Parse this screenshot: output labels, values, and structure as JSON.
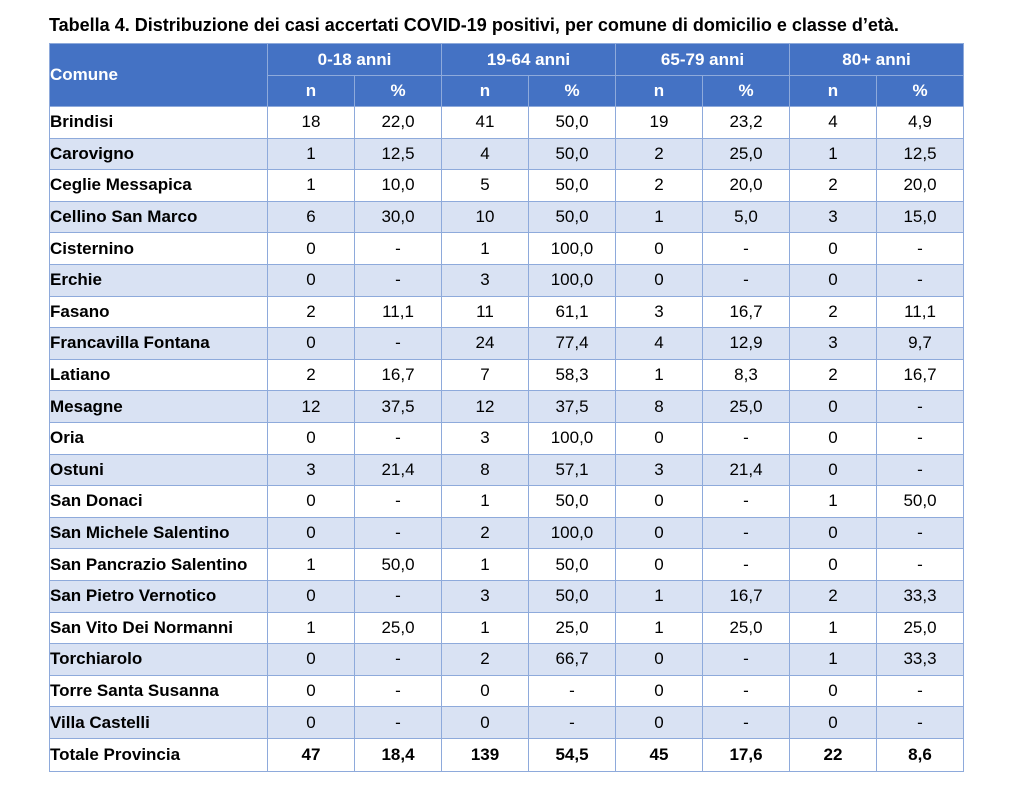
{
  "caption": "Tabella 4. Distribuzione dei casi accertati COVID-19 positivi, per comune di domicilio e classe d’età.",
  "table": {
    "comune_header": "Comune",
    "groups": [
      "0-18 anni",
      "19-64 anni",
      "65-79 anni",
      "80+ anni"
    ],
    "sub_headers": [
      "n",
      "%",
      "n",
      "%",
      "n",
      "%",
      "n",
      "%"
    ],
    "rows": [
      {
        "name": "Brindisi",
        "cells": [
          "18",
          "22,0",
          "41",
          "50,0",
          "19",
          "23,2",
          "4",
          "4,9"
        ]
      },
      {
        "name": "Carovigno",
        "cells": [
          "1",
          "12,5",
          "4",
          "50,0",
          "2",
          "25,0",
          "1",
          "12,5"
        ]
      },
      {
        "name": "Ceglie Messapica",
        "cells": [
          "1",
          "10,0",
          "5",
          "50,0",
          "2",
          "20,0",
          "2",
          "20,0"
        ]
      },
      {
        "name": "Cellino San Marco",
        "cells": [
          "6",
          "30,0",
          "10",
          "50,0",
          "1",
          "5,0",
          "3",
          "15,0"
        ]
      },
      {
        "name": "Cisternino",
        "cells": [
          "0",
          "-",
          "1",
          "100,0",
          "0",
          "-",
          "0",
          "-"
        ]
      },
      {
        "name": "Erchie",
        "cells": [
          "0",
          "-",
          "3",
          "100,0",
          "0",
          "-",
          "0",
          "-"
        ]
      },
      {
        "name": "Fasano",
        "cells": [
          "2",
          "11,1",
          "11",
          "61,1",
          "3",
          "16,7",
          "2",
          "11,1"
        ]
      },
      {
        "name": "Francavilla Fontana",
        "cells": [
          "0",
          "-",
          "24",
          "77,4",
          "4",
          "12,9",
          "3",
          "9,7"
        ]
      },
      {
        "name": "Latiano",
        "cells": [
          "2",
          "16,7",
          "7",
          "58,3",
          "1",
          "8,3",
          "2",
          "16,7"
        ]
      },
      {
        "name": "Mesagne",
        "cells": [
          "12",
          "37,5",
          "12",
          "37,5",
          "8",
          "25,0",
          "0",
          "-"
        ]
      },
      {
        "name": "Oria",
        "cells": [
          "0",
          "-",
          "3",
          "100,0",
          "0",
          "-",
          "0",
          "-"
        ]
      },
      {
        "name": "Ostuni",
        "cells": [
          "3",
          "21,4",
          "8",
          "57,1",
          "3",
          "21,4",
          "0",
          "-"
        ]
      },
      {
        "name": "San Donaci",
        "cells": [
          "0",
          "-",
          "1",
          "50,0",
          "0",
          "-",
          "1",
          "50,0"
        ]
      },
      {
        "name": "San Michele Salentino",
        "cells": [
          "0",
          "-",
          "2",
          "100,0",
          "0",
          "-",
          "0",
          "-"
        ]
      },
      {
        "name": "San Pancrazio Salentino",
        "cells": [
          "1",
          "50,0",
          "1",
          "50,0",
          "0",
          "-",
          "0",
          "-"
        ]
      },
      {
        "name": "San Pietro Vernotico",
        "cells": [
          "0",
          "-",
          "3",
          "50,0",
          "1",
          "16,7",
          "2",
          "33,3"
        ]
      },
      {
        "name": "San Vito Dei Normanni",
        "cells": [
          "1",
          "25,0",
          "1",
          "25,0",
          "1",
          "25,0",
          "1",
          "25,0"
        ]
      },
      {
        "name": "Torchiarolo",
        "cells": [
          "0",
          "-",
          "2",
          "66,7",
          "0",
          "-",
          "1",
          "33,3"
        ]
      },
      {
        "name": "Torre Santa Susanna",
        "cells": [
          "0",
          "-",
          "0",
          "-",
          "0",
          "-",
          "0",
          "-"
        ]
      },
      {
        "name": "Villa Castelli",
        "cells": [
          "0",
          "-",
          "0",
          "-",
          "0",
          "-",
          "0",
          "-"
        ]
      }
    ],
    "total": {
      "name": "Totale Provincia",
      "cells": [
        "47",
        "18,4",
        "139",
        "54,5",
        "45",
        "17,6",
        "22",
        "8,6"
      ]
    }
  }
}
